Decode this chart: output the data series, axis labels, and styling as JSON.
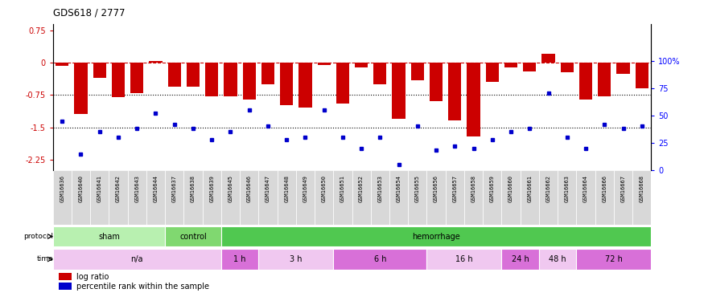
{
  "title": "GDS618 / 2777",
  "samples": [
    "GSM16636",
    "GSM16640",
    "GSM16641",
    "GSM16642",
    "GSM16643",
    "GSM16644",
    "GSM16637",
    "GSM16638",
    "GSM16639",
    "GSM16645",
    "GSM16646",
    "GSM16647",
    "GSM16648",
    "GSM16649",
    "GSM16650",
    "GSM16651",
    "GSM16652",
    "GSM16653",
    "GSM16654",
    "GSM16655",
    "GSM16656",
    "GSM16657",
    "GSM16658",
    "GSM16659",
    "GSM16660",
    "GSM16661",
    "GSM16662",
    "GSM16663",
    "GSM16664",
    "GSM16666",
    "GSM16667",
    "GSM16668"
  ],
  "log_ratio": [
    -0.08,
    -1.2,
    -0.35,
    -0.8,
    -0.7,
    0.04,
    -0.55,
    -0.55,
    -0.78,
    -0.78,
    -0.85,
    -0.5,
    -0.98,
    -1.05,
    -0.05,
    -0.95,
    -0.1,
    -0.5,
    -1.3,
    -0.4,
    -0.9,
    -1.35,
    -1.72,
    -0.45,
    -0.1,
    -0.2,
    0.2,
    -0.22,
    -0.85,
    -0.78,
    -0.25,
    -0.6
  ],
  "percentile": [
    45,
    15,
    35,
    30,
    38,
    52,
    42,
    38,
    28,
    35,
    55,
    40,
    28,
    30,
    55,
    30,
    20,
    30,
    5,
    40,
    18,
    22,
    20,
    28,
    35,
    38,
    70,
    30,
    20,
    42,
    38,
    40
  ],
  "protocol_groups": [
    {
      "label": "sham",
      "start": 0,
      "end": 6,
      "color": "#b8f0b0"
    },
    {
      "label": "control",
      "start": 6,
      "end": 9,
      "color": "#80d870"
    },
    {
      "label": "hemorrhage",
      "start": 9,
      "end": 32,
      "color": "#50c850"
    }
  ],
  "time_groups": [
    {
      "label": "n/a",
      "start": 0,
      "end": 9,
      "color": "#f0c8f0"
    },
    {
      "label": "1 h",
      "start": 9,
      "end": 11,
      "color": "#d870d8"
    },
    {
      "label": "3 h",
      "start": 11,
      "end": 15,
      "color": "#f0c8f0"
    },
    {
      "label": "6 h",
      "start": 15,
      "end": 20,
      "color": "#d870d8"
    },
    {
      "label": "16 h",
      "start": 20,
      "end": 24,
      "color": "#f0c8f0"
    },
    {
      "label": "24 h",
      "start": 24,
      "end": 26,
      "color": "#d870d8"
    },
    {
      "label": "48 h",
      "start": 26,
      "end": 28,
      "color": "#f0c8f0"
    },
    {
      "label": "72 h",
      "start": 28,
      "end": 32,
      "color": "#d870d8"
    }
  ],
  "ylim_left": [
    -2.5,
    0.9
  ],
  "yticks_left": [
    0.75,
    0,
    -0.75,
    -1.5,
    -2.25
  ],
  "ylim_right": [
    0,
    133.33
  ],
  "yticks_right": [
    0,
    25,
    50,
    75,
    100
  ],
  "bar_color": "#cc0000",
  "scatter_color": "#0000cc",
  "hline_color": "#cc0000",
  "dotted_vals": [
    -0.75,
    -1.5
  ],
  "background_color": "#ffffff",
  "label_bg": "#d8d8d8"
}
